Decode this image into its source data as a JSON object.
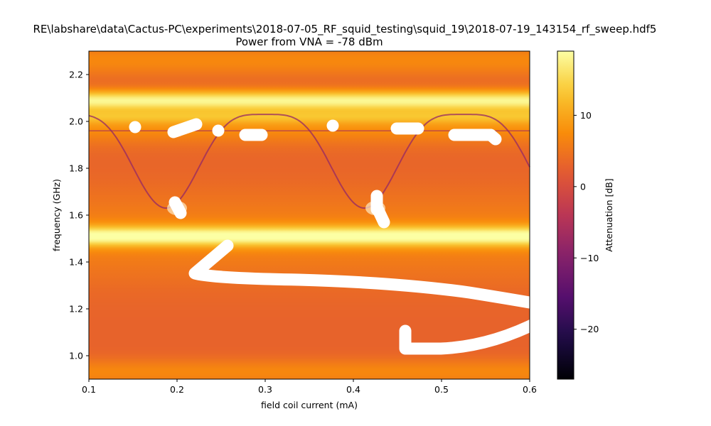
{
  "chart_data": {
    "type": "heatmap",
    "title": "RE\\labshare\\data\\Cactus-PC\\experiments\\2018-07-05_RF_squid_testing\\squid_19\\2018-07-19_143154_rf_sweep.hdf5",
    "subtitle": "Power from VNA = -78 dBm",
    "xlabel": "field coil current (mA)",
    "ylabel": "frequency (GHz)",
    "xlim": [
      0.1,
      0.6
    ],
    "ylim": [
      0.9,
      2.3
    ],
    "x_ticks": [
      "0.1",
      "0.2",
      "0.3",
      "0.4",
      "0.5",
      "0.6"
    ],
    "y_ticks": [
      "1.0",
      "1.2",
      "1.4",
      "1.6",
      "1.8",
      "2.0",
      "2.2"
    ],
    "colorbar": {
      "label": "Attenuation [dB]",
      "range": [
        -27,
        19
      ],
      "ticks": [
        "10",
        "0",
        "−10",
        "−20"
      ],
      "colormap": "inferno"
    },
    "features": {
      "resonance_bands_GHz": [
        {
          "center": 2.09,
          "peak_dB": 17
        },
        {
          "center": 1.51,
          "peak_dB": 17
        }
      ],
      "baseline_dB": 3,
      "resonance_line": {
        "period_mA": 0.225,
        "first_max_mA": 0.3,
        "max_GHz": 2.03,
        "min_GHz": 1.63,
        "min_positions_mA": [
          0.2,
          0.425
        ]
      }
    }
  }
}
